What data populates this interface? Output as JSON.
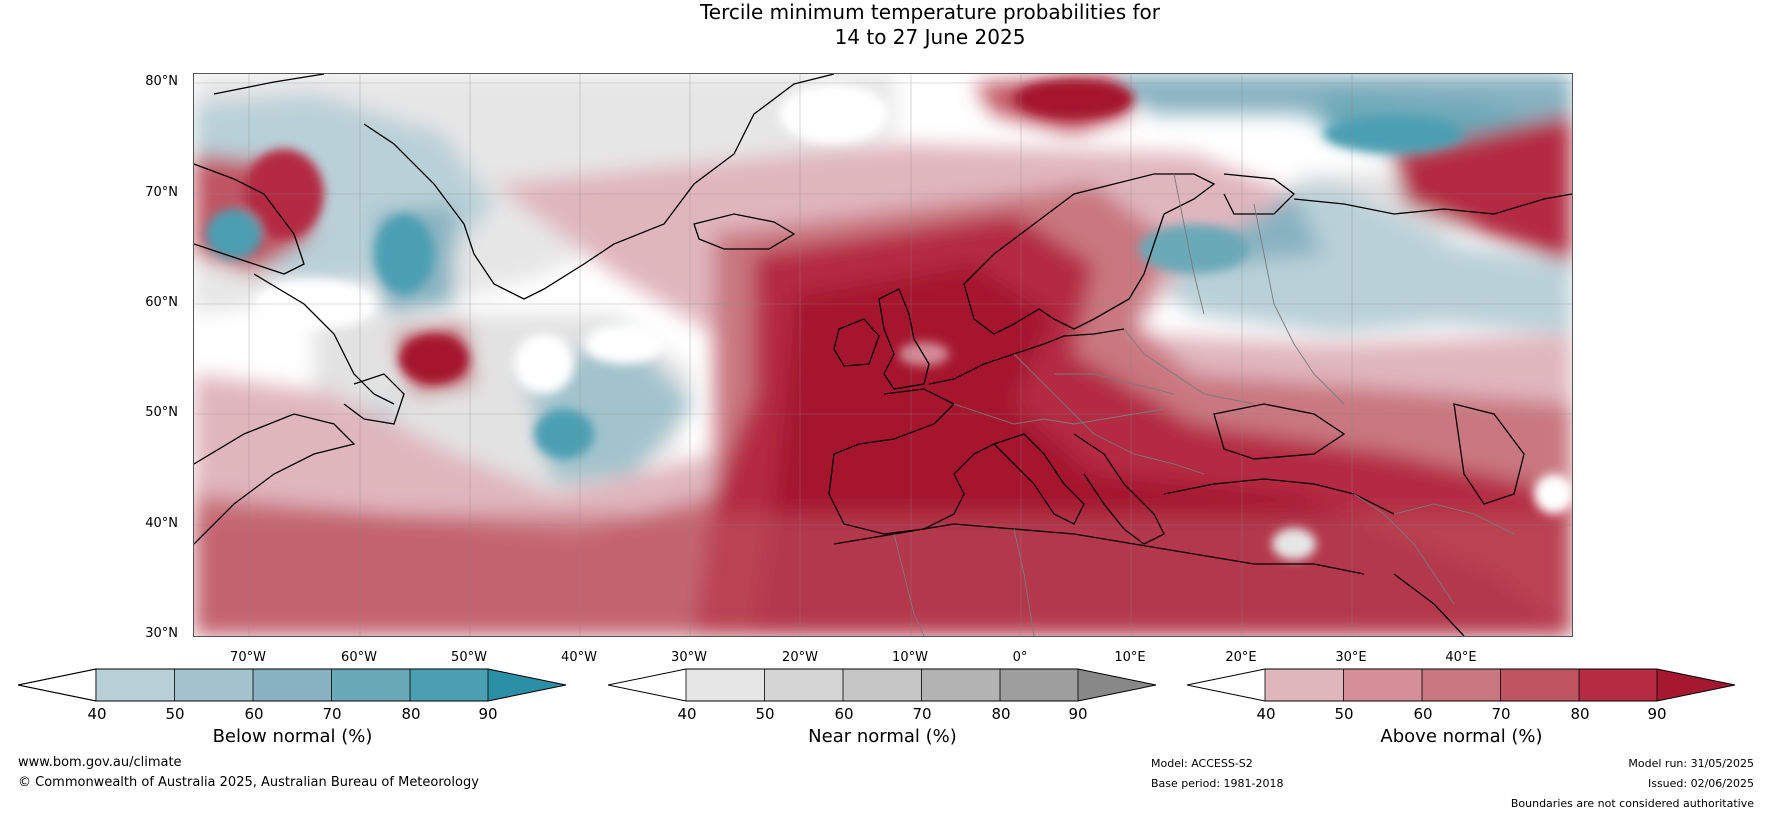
{
  "title": {
    "line1": "Tercile minimum temperature probabilities for",
    "line2": "14 to 27 June 2025"
  },
  "map": {
    "lat_labels": [
      "80°N",
      "70°N",
      "60°N",
      "50°N",
      "40°N",
      "30°N"
    ],
    "lon_labels": [
      "70°W",
      "60°W",
      "50°W",
      "40°W",
      "30°W",
      "20°W",
      "10°W",
      "0°",
      "10°E",
      "20°E",
      "30°E",
      "40°E"
    ],
    "colors": {
      "below": [
        "#b9d0d8",
        "#a2c3cc",
        "#88b2c1",
        "#6aa9b7",
        "#4b9fb3",
        "#2b8fa6"
      ],
      "near": [
        "#e6e6e6",
        "#d5d5d5",
        "#c6c6c6",
        "#b3b3b3",
        "#9e9e9e",
        "#888888"
      ],
      "above": [
        "#e0b6bd",
        "#d59097",
        "#c97780",
        "#c05562",
        "#b42b42",
        "#a5182f"
      ]
    }
  },
  "colorbars": [
    {
      "id": "below",
      "title": "Below normal (%)",
      "ticks": [
        "40",
        "50",
        "60",
        "70",
        "80",
        "90"
      ]
    },
    {
      "id": "near",
      "title": "Near normal (%)",
      "ticks": [
        "40",
        "50",
        "60",
        "70",
        "80",
        "90"
      ]
    },
    {
      "id": "above",
      "title": "Above normal (%)",
      "ticks": [
        "40",
        "50",
        "60",
        "70",
        "80",
        "90"
      ]
    }
  ],
  "footer": {
    "website": "www.bom.gov.au/climate",
    "copyright": "© Commonwealth of Australia 2025, Australian Bureau of Meteorology",
    "model": "Model: ACCESS-S2",
    "base_period": "Base period: 1981-2018",
    "model_run": "Model run: 31/05/2025",
    "issued": "Issued: 02/06/2025",
    "disclaimer": "Boundaries are not considered authoritative"
  }
}
